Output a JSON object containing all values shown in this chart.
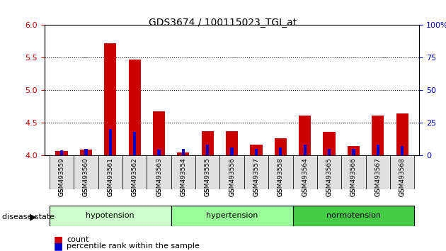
{
  "title": "GDS3674 / 100115023_TGI_at",
  "samples": [
    "GSM493559",
    "GSM493560",
    "GSM493561",
    "GSM493562",
    "GSM493563",
    "GSM493554",
    "GSM493555",
    "GSM493556",
    "GSM493557",
    "GSM493558",
    "GSM493564",
    "GSM493565",
    "GSM493566",
    "GSM493567",
    "GSM493568"
  ],
  "count_values": [
    4.07,
    4.09,
    5.72,
    5.47,
    4.68,
    4.05,
    4.37,
    4.37,
    4.17,
    4.27,
    4.61,
    4.36,
    4.15,
    4.61,
    4.65
  ],
  "percentile_values": [
    4.08,
    4.1,
    4.41,
    4.36,
    4.09,
    4.1,
    4.17,
    4.12,
    4.1,
    4.12,
    4.17,
    4.1,
    4.1,
    4.17,
    4.15
  ],
  "ylim": [
    4.0,
    6.0
  ],
  "yticks_left": [
    4.0,
    4.5,
    5.0,
    5.5,
    6.0
  ],
  "yticks_right": [
    0,
    25,
    50,
    75,
    100
  ],
  "groups": [
    {
      "label": "hypotension",
      "indices": [
        0,
        1,
        2,
        3,
        4
      ],
      "color": "#ccffcc"
    },
    {
      "label": "hypertension",
      "indices": [
        5,
        6,
        7,
        8,
        9
      ],
      "color": "#99ff99"
    },
    {
      "label": "normotension",
      "indices": [
        10,
        11,
        12,
        13,
        14
      ],
      "color": "#44cc44"
    }
  ],
  "bar_color_red": "#cc0000",
  "bar_color_blue": "#0000cc",
  "bar_width": 0.5,
  "background_color": "#ffffff",
  "grid_color": "#000000",
  "left_axis_color": "#cc0000",
  "right_axis_color": "#0000cc"
}
